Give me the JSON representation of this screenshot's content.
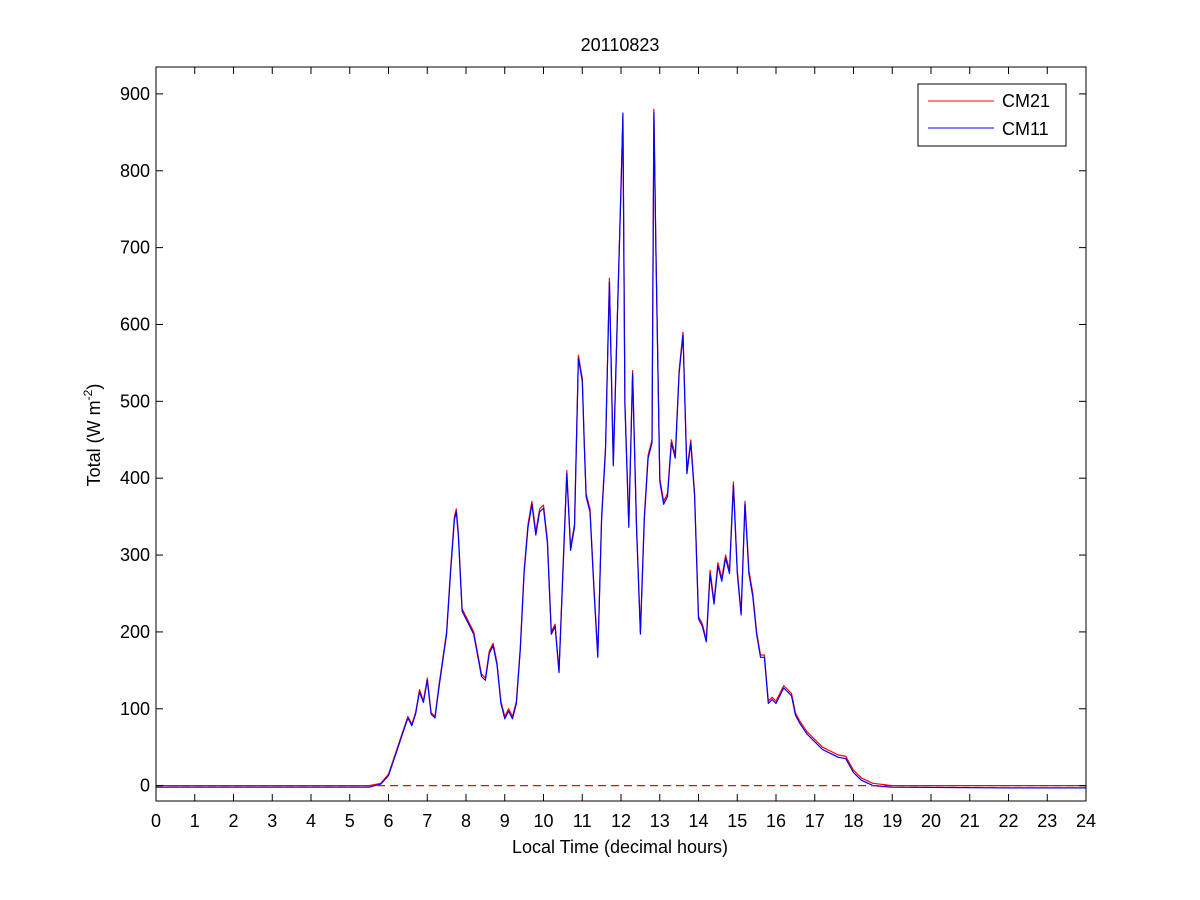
{
  "chart_data": {
    "type": "line",
    "title": "20110823",
    "xlabel": "Local Time (decimal hours)",
    "ylabel": "Total (W m",
    "ylabel_exponent": "-2",
    "ylabel_close": ")",
    "xlim": [
      0,
      24
    ],
    "ylim": [
      -20,
      935
    ],
    "xticks": [
      0,
      1,
      2,
      3,
      4,
      5,
      6,
      7,
      8,
      9,
      10,
      11,
      12,
      13,
      14,
      15,
      16,
      17,
      18,
      19,
      20,
      21,
      22,
      23,
      24
    ],
    "yticks": [
      0,
      100,
      200,
      300,
      400,
      500,
      600,
      700,
      800,
      900
    ],
    "grid": false,
    "legend_position": "top-right",
    "reference_line": {
      "y": 0,
      "style": "dashed",
      "color": "#ff0000"
    },
    "series": [
      {
        "name": "CM21",
        "color": "#ff0000",
        "x": [
          0,
          5.5,
          5.8,
          6.0,
          6.2,
          6.4,
          6.5,
          6.6,
          6.7,
          6.8,
          6.9,
          7.0,
          7.1,
          7.2,
          7.3,
          7.5,
          7.6,
          7.7,
          7.75,
          7.8,
          7.9,
          8.0,
          8.2,
          8.4,
          8.5,
          8.6,
          8.7,
          8.8,
          8.9,
          9.0,
          9.1,
          9.2,
          9.3,
          9.4,
          9.5,
          9.6,
          9.7,
          9.8,
          9.9,
          10.0,
          10.1,
          10.2,
          10.3,
          10.4,
          10.5,
          10.6,
          10.7,
          10.8,
          10.9,
          11.0,
          11.05,
          11.1,
          11.2,
          11.3,
          11.4,
          11.5,
          11.6,
          11.7,
          11.8,
          11.9,
          12.0,
          12.05,
          12.1,
          12.2,
          12.3,
          12.4,
          12.5,
          12.6,
          12.7,
          12.8,
          12.85,
          12.9,
          13.0,
          13.1,
          13.2,
          13.3,
          13.4,
          13.5,
          13.6,
          13.7,
          13.8,
          13.9,
          14.0,
          14.1,
          14.2,
          14.3,
          14.4,
          14.5,
          14.6,
          14.7,
          14.8,
          14.9,
          15.0,
          15.1,
          15.2,
          15.3,
          15.4,
          15.5,
          15.6,
          15.7,
          15.8,
          15.9,
          16.0,
          16.2,
          16.4,
          16.5,
          16.6,
          16.8,
          17.0,
          17.2,
          17.4,
          17.6,
          17.8,
          18.0,
          18.2,
          18.5,
          19.0,
          22.0,
          24.0
        ],
        "y": [
          0,
          0,
          3,
          15,
          45,
          75,
          90,
          80,
          95,
          125,
          110,
          140,
          95,
          90,
          130,
          200,
          280,
          350,
          360,
          330,
          230,
          220,
          200,
          145,
          140,
          175,
          185,
          160,
          110,
          90,
          100,
          90,
          110,
          180,
          280,
          340,
          370,
          330,
          360,
          365,
          320,
          200,
          210,
          150,
          280,
          410,
          310,
          340,
          560,
          530,
          450,
          380,
          360,
          260,
          170,
          350,
          440,
          660,
          420,
          600,
          780,
          870,
          500,
          340,
          540,
          340,
          200,
          350,
          430,
          450,
          880,
          700,
          400,
          370,
          380,
          450,
          430,
          540,
          590,
          410,
          450,
          380,
          220,
          210,
          190,
          280,
          240,
          290,
          270,
          300,
          280,
          395,
          280,
          225,
          370,
          280,
          250,
          200,
          170,
          170,
          110,
          115,
          110,
          130,
          120,
          95,
          85,
          70,
          60,
          50,
          45,
          40,
          38,
          20,
          10,
          3,
          0,
          0,
          0
        ]
      },
      {
        "name": "CM11",
        "color": "#0000ff",
        "x": [
          0,
          5.5,
          5.8,
          6.0,
          6.2,
          6.4,
          6.5,
          6.6,
          6.7,
          6.8,
          6.9,
          7.0,
          7.1,
          7.2,
          7.3,
          7.5,
          7.6,
          7.7,
          7.75,
          7.8,
          7.9,
          8.0,
          8.2,
          8.4,
          8.5,
          8.6,
          8.7,
          8.8,
          8.9,
          9.0,
          9.1,
          9.2,
          9.3,
          9.4,
          9.5,
          9.6,
          9.7,
          9.8,
          9.9,
          10.0,
          10.1,
          10.2,
          10.3,
          10.4,
          10.5,
          10.6,
          10.7,
          10.8,
          10.9,
          11.0,
          11.05,
          11.1,
          11.2,
          11.3,
          11.4,
          11.5,
          11.6,
          11.7,
          11.8,
          11.9,
          12.0,
          12.05,
          12.1,
          12.2,
          12.3,
          12.4,
          12.5,
          12.6,
          12.7,
          12.8,
          12.85,
          12.9,
          13.0,
          13.1,
          13.2,
          13.3,
          13.4,
          13.5,
          13.6,
          13.7,
          13.8,
          13.9,
          14.0,
          14.1,
          14.2,
          14.3,
          14.4,
          14.5,
          14.6,
          14.7,
          14.8,
          14.9,
          15.0,
          15.1,
          15.2,
          15.3,
          15.4,
          15.5,
          15.6,
          15.7,
          15.8,
          15.9,
          16.0,
          16.2,
          16.4,
          16.5,
          16.6,
          16.8,
          17.0,
          17.2,
          17.4,
          17.6,
          17.8,
          18.0,
          18.2,
          18.5,
          19.0,
          22.0,
          24.0
        ],
        "y": [
          -2,
          -2,
          2,
          13,
          43,
          73,
          88,
          78,
          93,
          122,
          108,
          137,
          93,
          88,
          127,
          197,
          276,
          346,
          356,
          326,
          227,
          217,
          197,
          142,
          137,
          172,
          182,
          157,
          107,
          87,
          97,
          87,
          107,
          177,
          276,
          336,
          366,
          326,
          356,
          361,
          316,
          197,
          207,
          147,
          276,
          406,
          306,
          336,
          556,
          526,
          446,
          376,
          356,
          256,
          167,
          346,
          436,
          655,
          416,
          596,
          776,
          875,
          496,
          336,
          536,
          336,
          197,
          346,
          426,
          446,
          876,
          696,
          396,
          366,
          376,
          446,
          426,
          536,
          586,
          406,
          446,
          376,
          217,
          207,
          187,
          276,
          236,
          286,
          266,
          296,
          276,
          391,
          276,
          222,
          366,
          276,
          246,
          197,
          167,
          167,
          107,
          112,
          107,
          127,
          117,
          92,
          82,
          67,
          57,
          47,
          42,
          37,
          35,
          17,
          7,
          0,
          -2,
          -3,
          -3
        ]
      }
    ]
  }
}
